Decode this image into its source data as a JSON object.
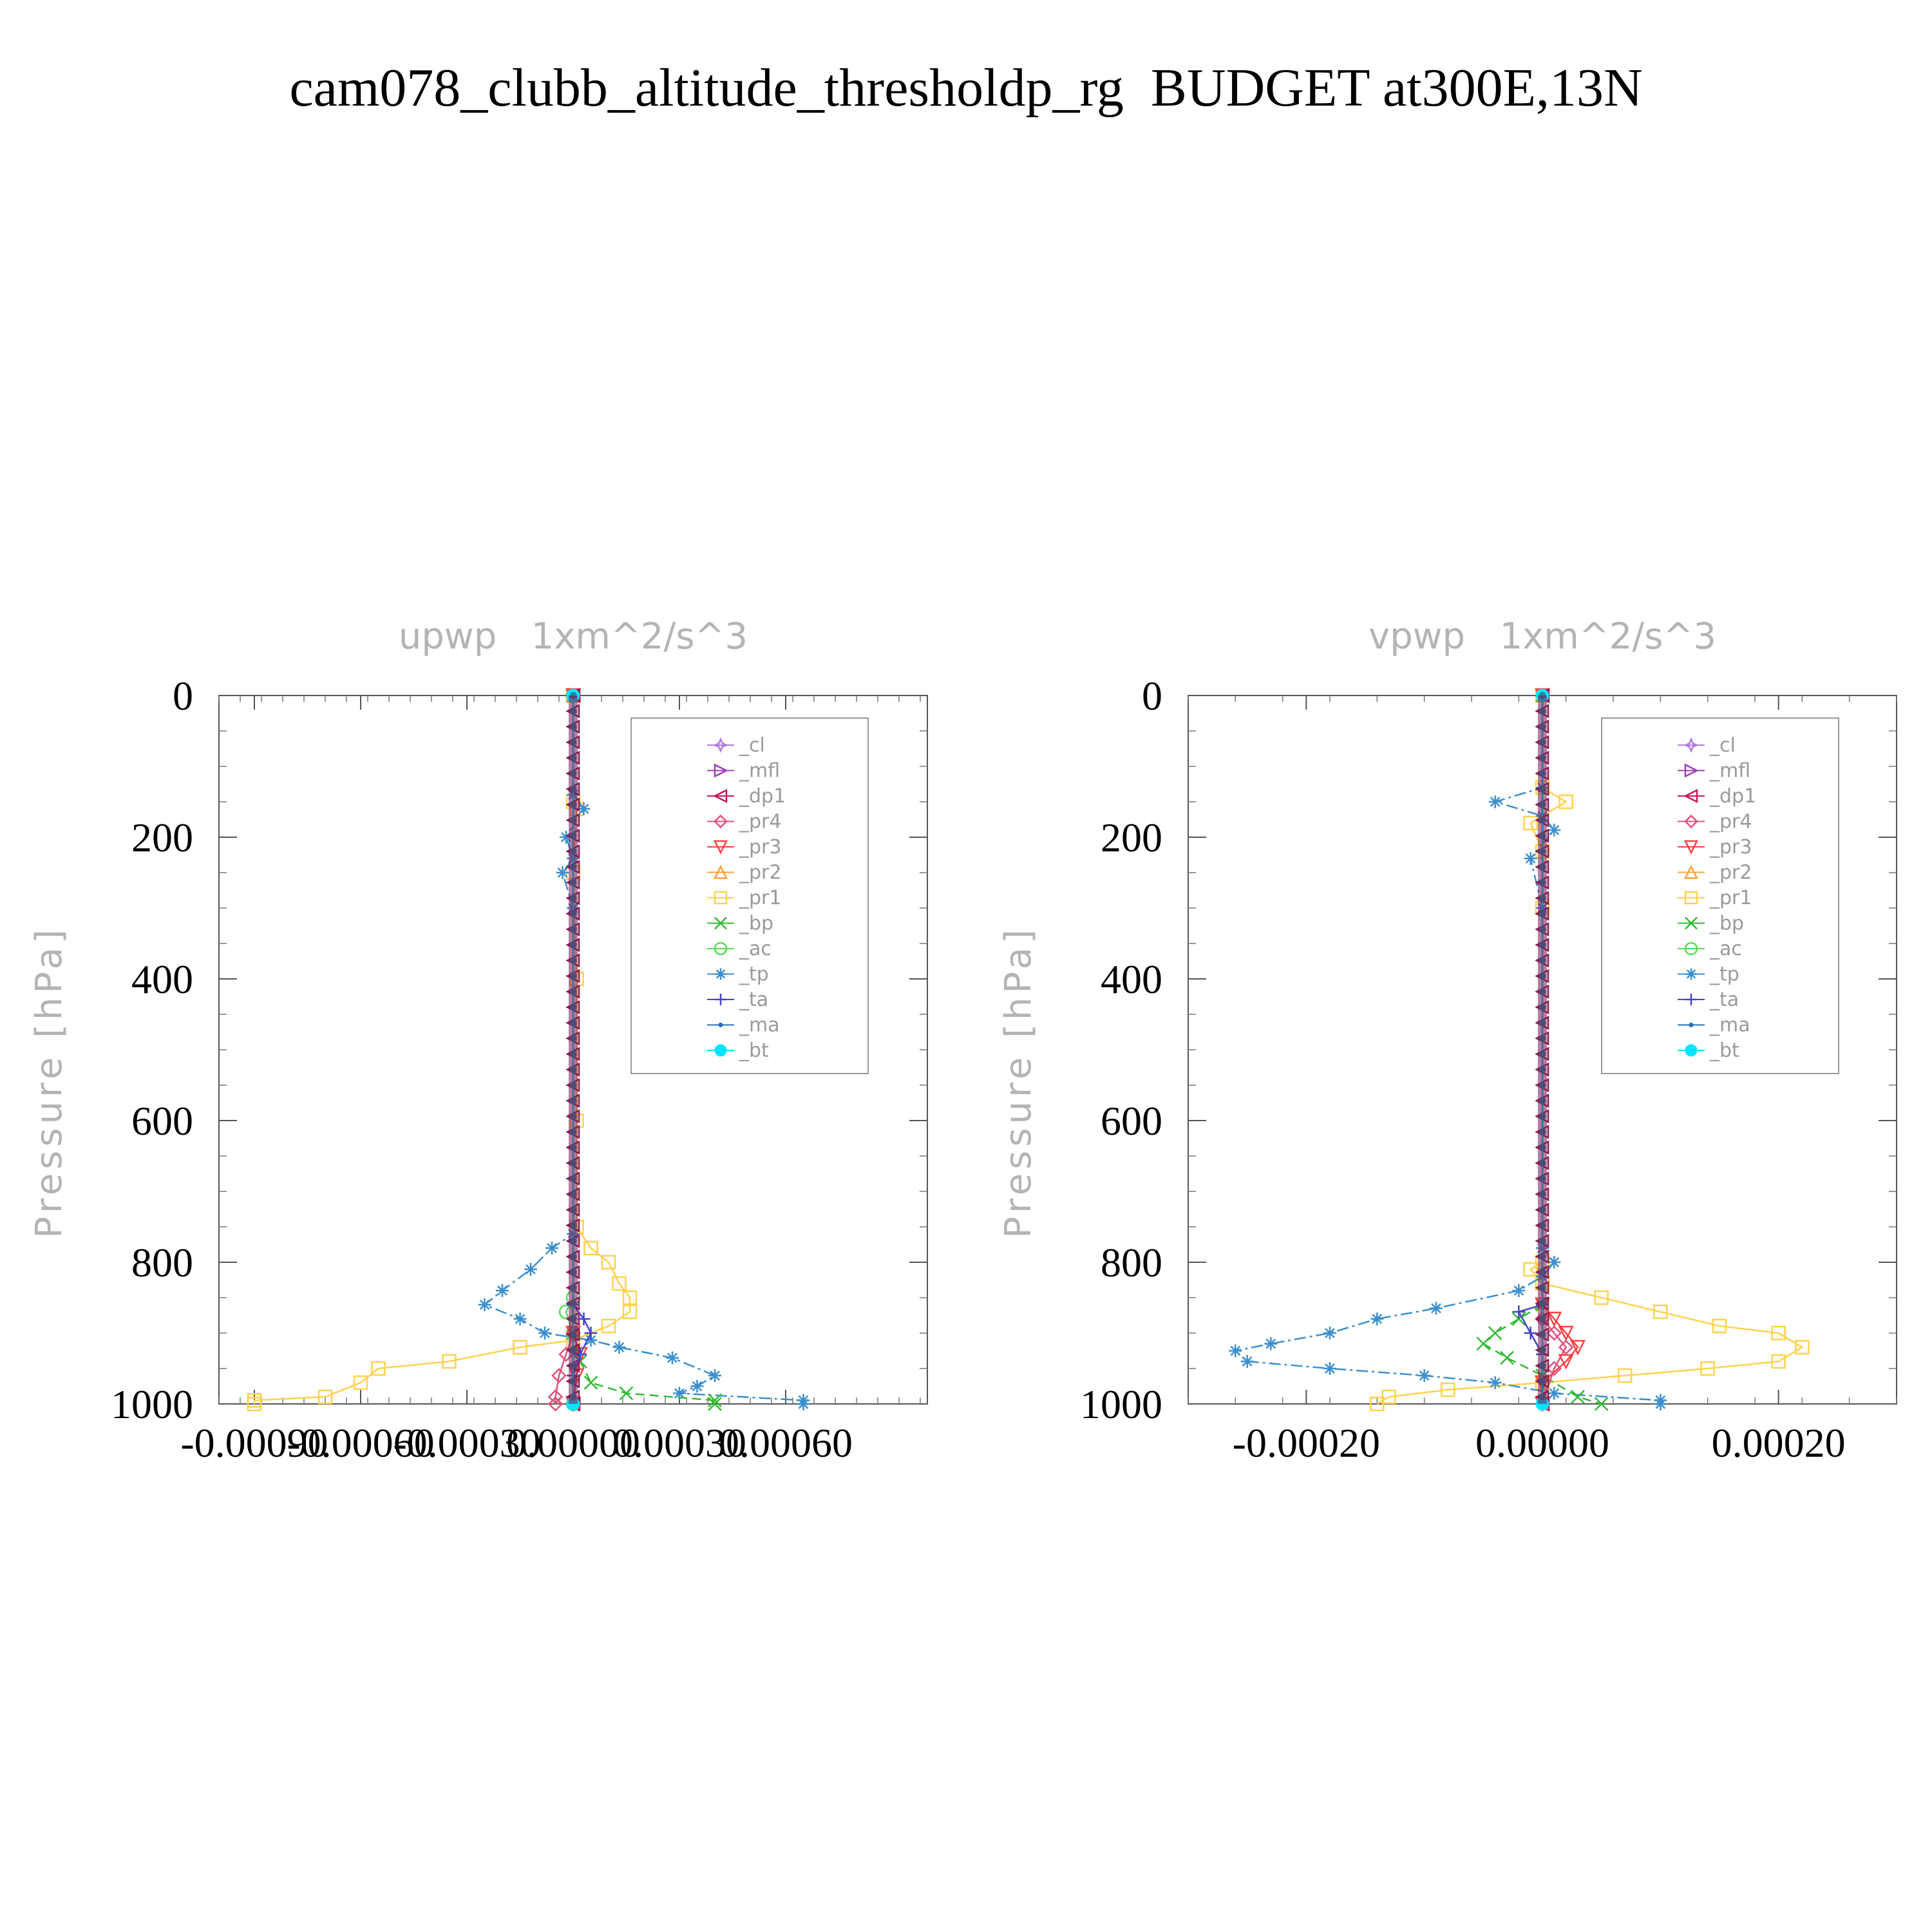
{
  "title": "cam078_clubb_altitude_thresholdp_rg  BUDGET at300E,13N",
  "legend": [
    {
      "name": "_cl",
      "color": "#b07cd8",
      "marker": "star"
    },
    {
      "name": "_mfl",
      "color": "#9b3fb5",
      "marker": "tri-right"
    },
    {
      "name": "_dp1",
      "color": "#c2185b",
      "marker": "tri-left"
    },
    {
      "name": "_pr4",
      "color": "#e0507a",
      "marker": "diamond"
    },
    {
      "name": "_pr3",
      "color": "#ff4040",
      "marker": "tri-down"
    },
    {
      "name": "_pr2",
      "color": "#ffa040",
      "marker": "tri-up"
    },
    {
      "name": "_pr1",
      "color": "#ffd24d",
      "marker": "square"
    },
    {
      "name": "_bp",
      "color": "#33bb33",
      "marker": "x"
    },
    {
      "name": "_ac",
      "color": "#55dd55",
      "marker": "circle"
    },
    {
      "name": "_tp",
      "color": "#3a8fd0",
      "marker": "asterisk"
    },
    {
      "name": "_ta",
      "color": "#4444cc",
      "marker": "plus"
    },
    {
      "name": "_ma",
      "color": "#2a6fb8",
      "marker": "dot"
    },
    {
      "name": "_bt",
      "color": "#00e5ff",
      "marker": "filled-circle"
    }
  ],
  "chart_data": [
    {
      "type": "line",
      "title": "upwp   1xm^2/s^3",
      "ylabel": "Pressure [hPa]",
      "xlabel": "",
      "ylim": [
        1000,
        0
      ],
      "xlim": [
        -0.001,
        0.001
      ],
      "xticks": [
        -0.0009,
        -0.0006,
        -0.0003,
        0.0,
        0.0003,
        0.0006
      ],
      "xtick_labels": [
        "-0.00090",
        "-0.00060",
        "-0.00030",
        "0.00000",
        "0.00030",
        "0.00060"
      ],
      "yticks": [
        0,
        200,
        400,
        600,
        800,
        1000
      ],
      "ytick_labels": [
        "0",
        "200",
        "400",
        "600",
        "800",
        "1000"
      ],
      "legend_position": "top-right",
      "series": [
        {
          "name": "_pr1",
          "points": [
            [
              0.0,
              0
            ],
            [
              0.0,
              150
            ],
            [
              1e-05,
              160
            ],
            [
              0.0,
              250
            ],
            [
              1e-05,
              400
            ],
            [
              1e-05,
              600
            ],
            [
              1e-05,
              750
            ],
            [
              5e-05,
              780
            ],
            [
              0.0001,
              800
            ],
            [
              0.00013,
              830
            ],
            [
              0.00016,
              850
            ],
            [
              0.00016,
              870
            ],
            [
              0.0001,
              890
            ],
            [
              0.0,
              910
            ],
            [
              -0.00015,
              920
            ],
            [
              -0.00035,
              940
            ],
            [
              -0.00055,
              950
            ],
            [
              -0.0006,
              970
            ],
            [
              -0.0007,
              990
            ],
            [
              -0.0009,
              995
            ],
            [
              -0.0009,
              1000
            ]
          ]
        },
        {
          "name": "_tp",
          "points": [
            [
              0.0,
              0
            ],
            [
              0.0,
              140
            ],
            [
              3e-05,
              160
            ],
            [
              -2e-05,
              200
            ],
            [
              0.0,
              230
            ],
            [
              -3e-05,
              250
            ],
            [
              0.0,
              300
            ],
            [
              0.0,
              760
            ],
            [
              -6e-05,
              780
            ],
            [
              -0.00012,
              810
            ],
            [
              -0.0002,
              840
            ],
            [
              -0.00025,
              860
            ],
            [
              -0.00015,
              880
            ],
            [
              -8e-05,
              900
            ],
            [
              5e-05,
              910
            ],
            [
              0.00013,
              920
            ],
            [
              0.00028,
              935
            ],
            [
              0.0004,
              960
            ],
            [
              0.00035,
              975
            ],
            [
              0.0003,
              985
            ],
            [
              0.00065,
              995
            ],
            [
              0.00065,
              1000
            ]
          ]
        },
        {
          "name": "_bp",
          "points": [
            [
              0.0,
              0
            ],
            [
              0.0,
              900
            ],
            [
              2e-05,
              940
            ],
            [
              5e-05,
              970
            ],
            [
              0.00015,
              985
            ],
            [
              0.0004,
              995
            ],
            [
              0.0004,
              1000
            ]
          ]
        },
        {
          "name": "_ac",
          "points": [
            [
              0.0,
              0
            ],
            [
              0.0,
              850
            ],
            [
              -2e-05,
              870
            ],
            [
              0.0,
              900
            ],
            [
              0.0,
              1000
            ]
          ]
        },
        {
          "name": "_pr4",
          "points": [
            [
              0.0,
              0
            ],
            [
              0.0,
              900
            ],
            [
              -2e-05,
              930
            ],
            [
              -4e-05,
              960
            ],
            [
              -5e-05,
              990
            ],
            [
              -5e-05,
              1000
            ]
          ]
        },
        {
          "name": "_pr3",
          "points": [
            [
              0.0,
              0
            ],
            [
              0.0,
              900
            ],
            [
              2e-05,
              930
            ],
            [
              1e-05,
              960
            ],
            [
              0.0,
              1000
            ]
          ]
        },
        {
          "name": "_dp1",
          "points": [
            [
              0.0,
              0
            ],
            [
              0.0,
              1000
            ]
          ]
        },
        {
          "name": "_ta",
          "points": [
            [
              0.0,
              0
            ],
            [
              0.0,
              860
            ],
            [
              3e-05,
              880
            ],
            [
              5e-05,
              900
            ],
            [
              2e-05,
              930
            ],
            [
              0.0,
              960
            ],
            [
              0.0,
              1000
            ]
          ]
        },
        {
          "name": "_bt",
          "points": [
            [
              0.0,
              0
            ],
            [
              0.0,
              1000
            ]
          ]
        }
      ]
    },
    {
      "type": "line",
      "title": "vpwp   1xm^2/s^3",
      "ylabel": "Pressure [hPa]",
      "xlabel": "",
      "ylim": [
        1000,
        0
      ],
      "xlim": [
        -0.0003,
        0.0003
      ],
      "xticks": [
        -0.0002,
        0.0,
        0.0002
      ],
      "xtick_labels": [
        "-0.00020",
        "0.00000",
        "0.00020"
      ],
      "yticks": [
        0,
        200,
        400,
        600,
        800,
        1000
      ],
      "ytick_labels": [
        "0",
        "200",
        "400",
        "600",
        "800",
        "1000"
      ],
      "legend_position": "top-right",
      "series": [
        {
          "name": "_pr1",
          "points": [
            [
              0.0,
              0
            ],
            [
              0.0,
              130
            ],
            [
              2e-05,
              150
            ],
            [
              -1e-05,
              180
            ],
            [
              0.0,
              220
            ],
            [
              0.0,
              300
            ],
            [
              0.0,
              800
            ],
            [
              -1e-05,
              810
            ],
            [
              0.0,
              830
            ],
            [
              5e-05,
              850
            ],
            [
              0.0001,
              870
            ],
            [
              0.00015,
              890
            ],
            [
              0.0002,
              900
            ],
            [
              0.00022,
              920
            ],
            [
              0.0002,
              940
            ],
            [
              0.00014,
              950
            ],
            [
              7e-05,
              960
            ],
            [
              0.0,
              970
            ],
            [
              -8e-05,
              980
            ],
            [
              -0.00013,
              990
            ],
            [
              -0.00014,
              1000
            ]
          ]
        },
        {
          "name": "_tp",
          "points": [
            [
              0.0,
              0
            ],
            [
              0.0,
              130
            ],
            [
              -4e-05,
              150
            ],
            [
              0.0,
              170
            ],
            [
              1e-05,
              190
            ],
            [
              -1e-05,
              230
            ],
            [
              0.0,
              300
            ],
            [
              0.0,
              780
            ],
            [
              1e-05,
              800
            ],
            [
              0.0,
              820
            ],
            [
              -2e-05,
              840
            ],
            [
              -9e-05,
              865
            ],
            [
              -0.00014,
              880
            ],
            [
              -0.00018,
              900
            ],
            [
              -0.00023,
              915
            ],
            [
              -0.00026,
              925
            ],
            [
              -0.00025,
              940
            ],
            [
              -0.00018,
              950
            ],
            [
              -0.0001,
              960
            ],
            [
              -4e-05,
              970
            ],
            [
              1e-05,
              985
            ],
            [
              0.0001,
              995
            ],
            [
              0.0001,
              1000
            ]
          ]
        },
        {
          "name": "_bp",
          "points": [
            [
              0.0,
              0
            ],
            [
              0.0,
              860
            ],
            [
              -2e-05,
              880
            ],
            [
              -4e-05,
              900
            ],
            [
              -5e-05,
              915
            ],
            [
              -3e-05,
              935
            ],
            [
              0.0,
              960
            ],
            [
              3e-05,
              990
            ],
            [
              5e-05,
              1000
            ]
          ]
        },
        {
          "name": "_pr3",
          "points": [
            [
              0.0,
              0
            ],
            [
              0.0,
              860
            ],
            [
              1e-05,
              880
            ],
            [
              2e-05,
              900
            ],
            [
              3e-05,
              920
            ],
            [
              2e-05,
              940
            ],
            [
              0.0,
              970
            ],
            [
              0.0,
              1000
            ]
          ]
        },
        {
          "name": "_pr4",
          "points": [
            [
              0.0,
              0
            ],
            [
              0.0,
              880
            ],
            [
              1e-05,
              900
            ],
            [
              2e-05,
              920
            ],
            [
              1e-05,
              950
            ],
            [
              0.0,
              1000
            ]
          ]
        },
        {
          "name": "_ta",
          "points": [
            [
              0.0,
              0
            ],
            [
              0.0,
              860
            ],
            [
              -2e-05,
              870
            ],
            [
              -1e-05,
              900
            ],
            [
              0.0,
              930
            ],
            [
              0.0,
              1000
            ]
          ]
        },
        {
          "name": "_dp1",
          "points": [
            [
              0.0,
              0
            ],
            [
              0.0,
              1000
            ]
          ]
        },
        {
          "name": "_bt",
          "points": [
            [
              0.0,
              0
            ],
            [
              0.0,
              1000
            ]
          ]
        }
      ]
    }
  ]
}
